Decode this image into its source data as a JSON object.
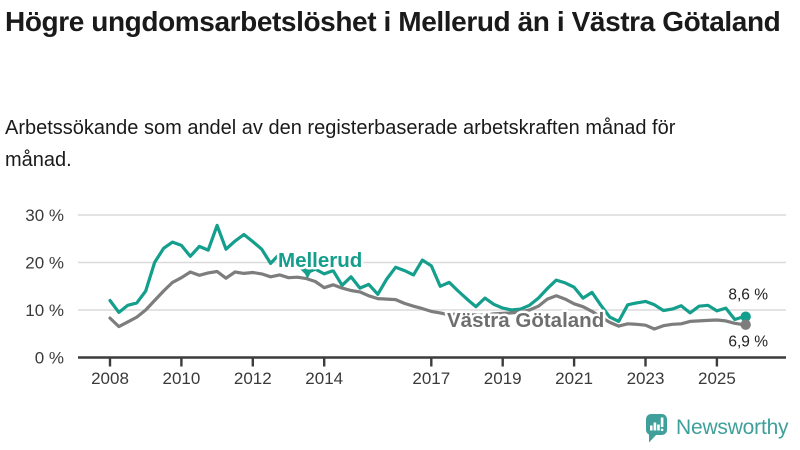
{
  "header": {
    "title": "Högre ungdomsarbetslöshet i Mellerud än i Västra Götaland",
    "subtitle": "Arbetssökande som andel av den registerbaserade arbetskraften månad för månad."
  },
  "footer": {
    "brand": "Newsworthy",
    "brand_color": "#3f9f9a"
  },
  "chart_data": {
    "type": "line",
    "title": "Högre ungdomsarbetslöshet i Mellerud än i Västra Götaland",
    "subtitle": "Arbetssökande som andel av den registerbaserade arbetskraften månad för månad.",
    "legend": "inline-labels",
    "grid": true,
    "grid_color": "#dadada",
    "axis_color": "#3c3c3c",
    "ylim": [
      0,
      30
    ],
    "y_ticks": [
      {
        "value": 0,
        "label": "0 %"
      },
      {
        "value": 10,
        "label": "10 %"
      },
      {
        "value": 20,
        "label": "20 %"
      },
      {
        "value": 30,
        "label": "30 %"
      }
    ],
    "x_ticks": [
      2008,
      2010,
      2012,
      2014,
      2017,
      2019,
      2021,
      2023,
      2025
    ],
    "x_start": 2008.0,
    "x_step": 0.25,
    "series": [
      {
        "name": "Mellerud",
        "color": "#149e8c",
        "label_color": "#149e8c",
        "end_label": "8,6 %",
        "end_value": 8.6,
        "values": [
          12.0,
          9.5,
          11.0,
          11.5,
          14.0,
          20.0,
          23.0,
          24.3,
          23.6,
          21.3,
          23.4,
          22.6,
          27.8,
          22.8,
          24.5,
          25.9,
          24.4,
          22.8,
          19.8,
          21.8,
          20.8,
          19.6,
          17.8,
          18.6,
          17.6,
          18.3,
          15.2,
          17.0,
          14.6,
          15.4,
          13.3,
          16.5,
          19.0,
          18.3,
          17.4,
          20.5,
          19.3,
          15.0,
          15.8,
          14.0,
          12.3,
          10.7,
          12.5,
          11.2,
          10.4,
          10.0,
          10.2,
          11.0,
          12.5,
          14.5,
          16.3,
          15.7,
          14.8,
          12.5,
          13.7,
          11.0,
          8.5,
          7.6,
          11.1,
          11.5,
          11.8,
          11.1,
          9.9,
          10.2,
          10.9,
          9.4,
          10.8,
          11.0,
          9.8,
          10.4,
          8.0,
          8.6
        ]
      },
      {
        "name": "Västra Götaland",
        "color": "#7d7d7d",
        "label_color": "#6e6e6e",
        "end_label": "6,9 %",
        "end_value": 6.9,
        "values": [
          8.3,
          6.5,
          7.5,
          8.5,
          10.0,
          12.0,
          14.0,
          15.8,
          16.8,
          18.0,
          17.3,
          17.8,
          18.1,
          16.7,
          18.0,
          17.7,
          17.9,
          17.6,
          17.0,
          17.4,
          16.8,
          16.9,
          16.6,
          16.0,
          14.7,
          15.3,
          14.6,
          14.1,
          13.8,
          13.0,
          12.4,
          12.3,
          12.2,
          11.4,
          10.8,
          10.3,
          9.7,
          9.4,
          9.0,
          9.2,
          9.0,
          9.0,
          8.9,
          9.2,
          9.3,
          9.4,
          9.6,
          10.0,
          10.8,
          12.3,
          13.0,
          12.3,
          11.3,
          10.7,
          9.7,
          8.5,
          7.4,
          6.6,
          7.1,
          7.0,
          6.8,
          6.0,
          6.7,
          7.0,
          7.1,
          7.6,
          7.7,
          7.8,
          7.9,
          7.7,
          7.2,
          6.9
        ]
      }
    ]
  }
}
